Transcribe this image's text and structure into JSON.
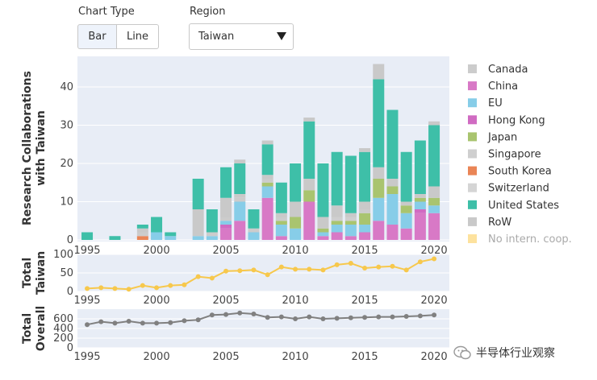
{
  "controls": {
    "chart_type_label": "Chart Type",
    "bar_label": "Bar",
    "line_label": "Line",
    "region_label": "Region",
    "region_value": "Taiwan"
  },
  "watermark": "半导体行业观察",
  "colors": {
    "panel_bg": "#e8edf6",
    "Canada": "#cccccc",
    "China": "#d879c6",
    "EU": "#87cde8",
    "Hong Kong": "#d06bc2",
    "Japan": "#a9c46f",
    "Singapore": "#cfcfcf",
    "South Korea": "#ea8556",
    "Switzerland": "#d5d5d5",
    "United States": "#3ebfa8",
    "RoW": "#c9c9c9",
    "No intern. coop.": "#fde29e",
    "taiwan_line": "#f7c84c",
    "overall_line": "#808080"
  },
  "chart_data": [
    {
      "type": "bar",
      "stacked": true,
      "ylabel": [
        "Research Collaborations",
        "with Taiwan"
      ],
      "ylim": [
        0,
        48
      ],
      "yticks": [
        0,
        10,
        20,
        30,
        40
      ],
      "xticks": [
        1995,
        2000,
        2005,
        2010,
        2015,
        2020
      ],
      "categories": [
        1995,
        1996,
        1997,
        1998,
        1999,
        2000,
        2001,
        2002,
        2003,
        2004,
        2005,
        2006,
        2007,
        2008,
        2009,
        2010,
        2011,
        2012,
        2013,
        2014,
        2015,
        2016,
        2017,
        2018,
        2019,
        2020
      ],
      "series": [
        {
          "name": "China",
          "values": [
            0,
            0,
            0,
            0,
            0,
            0,
            0,
            0,
            0,
            0,
            3,
            5,
            0,
            11,
            1,
            0,
            10,
            1,
            2,
            1,
            2,
            5,
            4,
            3,
            7,
            7
          ]
        },
        {
          "name": "Hong Kong",
          "values": [
            0,
            0,
            0,
            0,
            0,
            0,
            0,
            0,
            0,
            0,
            1,
            0,
            0,
            0,
            0,
            0,
            0,
            0,
            0,
            0,
            0,
            0,
            0,
            0,
            1,
            0
          ]
        },
        {
          "name": "EU",
          "values": [
            0,
            0,
            0,
            0,
            0,
            2,
            1,
            0,
            1,
            1,
            1,
            5,
            2,
            3,
            3,
            3,
            0,
            1,
            2,
            3,
            2,
            6,
            8,
            4,
            2,
            2
          ]
        },
        {
          "name": "Japan",
          "values": [
            0,
            0,
            0,
            0,
            0,
            0,
            0,
            0,
            0,
            0,
            0,
            0,
            0,
            1,
            1,
            3,
            3,
            1,
            1,
            1,
            3,
            5,
            2,
            2,
            1,
            2
          ]
        },
        {
          "name": "South Korea",
          "values": [
            0,
            0,
            0,
            0,
            1,
            0,
            0,
            0,
            0,
            0,
            0,
            0,
            0,
            0,
            0,
            0,
            0,
            0,
            0,
            0,
            0,
            0,
            0,
            0,
            0,
            0
          ]
        },
        {
          "name": "Canada",
          "values": [
            0,
            0,
            0,
            0,
            1,
            0,
            0,
            0,
            0,
            1,
            1,
            1,
            1,
            1,
            1,
            0,
            0,
            0,
            0,
            0,
            1,
            0,
            0,
            0,
            0,
            0
          ]
        },
        {
          "name": "Singapore",
          "values": [
            0,
            0,
            0,
            0,
            0,
            0,
            0,
            0,
            0,
            0,
            0,
            0,
            0,
            0,
            0,
            0,
            0,
            0,
            1,
            1,
            0,
            0,
            0,
            0,
            0,
            0
          ]
        },
        {
          "name": "Switzerland",
          "values": [
            0,
            0,
            0,
            0,
            0,
            0,
            0,
            0,
            0,
            0,
            0,
            0,
            0,
            0,
            0,
            0,
            0,
            0,
            0,
            0,
            0,
            0,
            0,
            0,
            0,
            0
          ]
        },
        {
          "name": "RoW",
          "values": [
            0,
            0,
            0,
            0,
            1,
            0,
            0,
            0,
            7,
            0,
            5,
            1,
            0,
            1,
            1,
            4,
            3,
            3,
            3,
            1,
            2,
            3,
            2,
            1,
            1,
            3
          ]
        },
        {
          "name": "United States",
          "values": [
            2,
            0,
            1,
            0,
            1,
            4,
            1,
            0,
            8,
            6,
            8,
            8,
            5,
            8,
            8,
            10,
            15,
            14,
            14,
            15,
            13,
            23,
            18,
            13,
            14,
            16
          ]
        },
        {
          "name": "No intern. coop.",
          "values": [
            0,
            0,
            0,
            0,
            0,
            0,
            0,
            0,
            0,
            0,
            0,
            0,
            0,
            0,
            0,
            0,
            0,
            0,
            0,
            0,
            0,
            0,
            0,
            0,
            0,
            0
          ]
        }
      ],
      "totals_above_stack": [
        0,
        0,
        0,
        0,
        0,
        0,
        0,
        0,
        0,
        0,
        0,
        1,
        0,
        1,
        0,
        0,
        1,
        0,
        0,
        0,
        1,
        4,
        0,
        0,
        0,
        1
      ],
      "legend": [
        "Canada",
        "China",
        "EU",
        "Hong Kong",
        "Japan",
        "Singapore",
        "South Korea",
        "Switzerland",
        "United States",
        "RoW",
        "No intern. coop."
      ],
      "legend_placement": "right"
    },
    {
      "type": "line",
      "ylabel": [
        "Total",
        "Taiwan"
      ],
      "ylim": [
        0,
        100
      ],
      "yticks": [
        0,
        50,
        100
      ],
      "xticks": [
        1995,
        2000,
        2005,
        2010,
        2015,
        2020
      ],
      "x": [
        1995,
        1996,
        1997,
        1998,
        1999,
        2000,
        2001,
        2002,
        2003,
        2004,
        2005,
        2006,
        2007,
        2008,
        2009,
        2010,
        2011,
        2012,
        2013,
        2014,
        2015,
        2016,
        2017,
        2018,
        2019,
        2020
      ],
      "values": [
        8,
        10,
        8,
        6,
        16,
        10,
        16,
        18,
        40,
        36,
        55,
        56,
        58,
        45,
        66,
        60,
        60,
        58,
        72,
        76,
        63,
        66,
        68,
        58,
        80,
        88
      ]
    },
    {
      "type": "line",
      "ylabel": [
        "Total",
        "Overall"
      ],
      "ylim": [
        0,
        800
      ],
      "yticks": [
        0,
        200,
        400,
        600
      ],
      "xticks": [
        1995,
        2000,
        2005,
        2010,
        2015,
        2020
      ],
      "x": [
        1995,
        1996,
        1997,
        1998,
        1999,
        2000,
        2001,
        2002,
        2003,
        2004,
        2005,
        2006,
        2007,
        2008,
        2009,
        2010,
        2011,
        2012,
        2013,
        2014,
        2015,
        2016,
        2017,
        2018,
        2019,
        2020
      ],
      "values": [
        480,
        540,
        510,
        550,
        510,
        510,
        520,
        560,
        580,
        680,
        690,
        720,
        700,
        630,
        640,
        600,
        640,
        600,
        610,
        620,
        630,
        640,
        640,
        650,
        660,
        680
      ]
    }
  ]
}
